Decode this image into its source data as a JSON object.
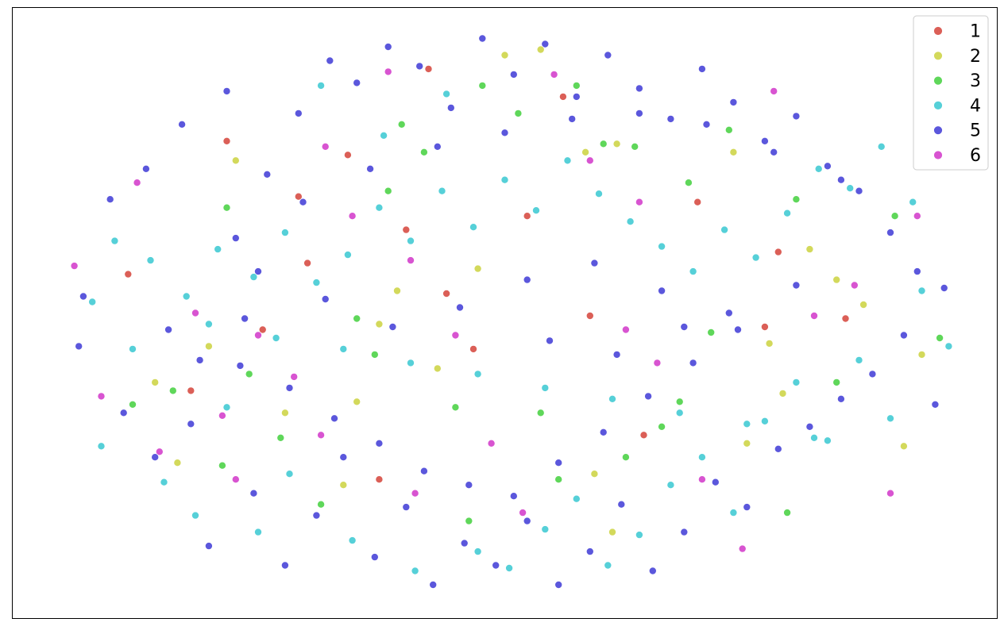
{
  "chart_data": {
    "type": "scatter",
    "title": "",
    "xlabel": "",
    "ylabel": "",
    "axes_ticks": false,
    "grid": false,
    "legend_placement": "top-right",
    "x_range": [
      -100,
      100
    ],
    "y_range": [
      -100,
      100
    ],
    "series": [
      {
        "name": "1",
        "color": "#db5f57",
        "points": [
          [
            -84,
            14
          ],
          [
            -17,
            88
          ],
          [
            13,
            78
          ],
          [
            -44,
            18
          ],
          [
            -13,
            7
          ],
          [
            -54,
            -6
          ],
          [
            -70,
            -28
          ],
          [
            -28,
            -60
          ],
          [
            61,
            22
          ],
          [
            76,
            -2
          ],
          [
            -46,
            42
          ],
          [
            43,
            40
          ],
          [
            -22,
            30
          ],
          [
            31,
            -44
          ],
          [
            -7,
            -13
          ],
          [
            58,
            -5
          ],
          [
            -35,
            57
          ],
          [
            19,
            -1
          ],
          [
            5,
            35
          ],
          [
            -62,
            62
          ]
        ]
      },
      {
        "name": "2",
        "color": "#d3d95b",
        "points": [
          [
            -60,
            55
          ],
          [
            -78,
            -25
          ],
          [
            -73,
            -54
          ],
          [
            -66,
            -12
          ],
          [
            -49,
            -36
          ],
          [
            -33,
            -32
          ],
          [
            -36,
            -62
          ],
          [
            -24,
            8
          ],
          [
            -15,
            -20
          ],
          [
            -6,
            16
          ],
          [
            0,
            93
          ],
          [
            8,
            95
          ],
          [
            20,
            -58
          ],
          [
            24,
            -79
          ],
          [
            25,
            61
          ],
          [
            51,
            58
          ],
          [
            54,
            -47
          ],
          [
            59,
            -11
          ],
          [
            62,
            -29
          ],
          [
            68,
            23
          ],
          [
            80,
            3
          ],
          [
            89,
            -48
          ],
          [
            93,
            -15
          ],
          [
            74,
            12
          ],
          [
            18,
            58
          ],
          [
            -28,
            -4
          ]
        ]
      },
      {
        "name": "3",
        "color": "#5fd75a",
        "points": [
          [
            -74,
            -28
          ],
          [
            -57,
            -22
          ],
          [
            -41,
            -69
          ],
          [
            -33,
            -2
          ],
          [
            -29,
            -15
          ],
          [
            -23,
            68
          ],
          [
            -18,
            58
          ],
          [
            -11,
            -34
          ],
          [
            -5,
            82
          ],
          [
            3,
            72
          ],
          [
            16,
            82
          ],
          [
            22,
            61
          ],
          [
            29,
            60
          ],
          [
            41,
            47
          ],
          [
            46,
            -7
          ],
          [
            50,
            66
          ],
          [
            65,
            41
          ],
          [
            74,
            -25
          ],
          [
            87,
            35
          ],
          [
            97,
            -9
          ],
          [
            -83,
            -33
          ],
          [
            -63,
            -55
          ],
          [
            -50,
            -45
          ],
          [
            -8,
            -75
          ],
          [
            8,
            -36
          ],
          [
            12,
            -60
          ],
          [
            27,
            -52
          ],
          [
            35,
            -41
          ],
          [
            63,
            -72
          ],
          [
            39,
            -32
          ],
          [
            -62,
            38
          ],
          [
            -26,
            44
          ]
        ]
      },
      {
        "name": "4",
        "color": "#56d0d8",
        "points": [
          [
            -90,
            -48
          ],
          [
            -83,
            -13
          ],
          [
            -76,
            -61
          ],
          [
            -69,
            -73
          ],
          [
            -62,
            -34
          ],
          [
            -55,
            -79
          ],
          [
            -48,
            -58
          ],
          [
            -41,
            82
          ],
          [
            -34,
            -82
          ],
          [
            -27,
            64
          ],
          [
            -20,
            -93
          ],
          [
            -13,
            79
          ],
          [
            -6,
            -86
          ],
          [
            1,
            -92
          ],
          [
            9,
            -78
          ],
          [
            16,
            -67
          ],
          [
            23,
            -91
          ],
          [
            30,
            -80
          ],
          [
            37,
            -62
          ],
          [
            44,
            -52
          ],
          [
            51,
            -72
          ],
          [
            58,
            -39
          ],
          [
            65,
            -25
          ],
          [
            72,
            -46
          ],
          [
            79,
            -17
          ],
          [
            86,
            -38
          ],
          [
            93,
            8
          ],
          [
            99,
            -12
          ],
          [
            -92,
            4
          ],
          [
            -87,
            26
          ],
          [
            -79,
            19
          ],
          [
            -71,
            6
          ],
          [
            -64,
            23
          ],
          [
            -56,
            13
          ],
          [
            -49,
            29
          ],
          [
            -42,
            11
          ],
          [
            -35,
            21
          ],
          [
            -28,
            38
          ],
          [
            -21,
            26
          ],
          [
            -14,
            44
          ],
          [
            -7,
            31
          ],
          [
            0,
            48
          ],
          [
            7,
            37
          ],
          [
            14,
            55
          ],
          [
            21,
            43
          ],
          [
            28,
            33
          ],
          [
            35,
            24
          ],
          [
            42,
            15
          ],
          [
            49,
            30
          ],
          [
            56,
            20
          ],
          [
            63,
            36
          ],
          [
            70,
            52
          ],
          [
            77,
            45
          ],
          [
            84,
            60
          ],
          [
            91,
            40
          ],
          [
            -66,
            -4
          ],
          [
            -51,
            -9
          ],
          [
            -36,
            -13
          ],
          [
            -21,
            -18
          ],
          [
            -6,
            -22
          ],
          [
            9,
            -27
          ],
          [
            24,
            -31
          ],
          [
            39,
            -36
          ],
          [
            54,
            -40
          ],
          [
            69,
            -45
          ]
        ]
      },
      {
        "name": "5",
        "color": "#5b57dc",
        "points": [
          [
            -95,
            -12
          ],
          [
            -94,
            6
          ],
          [
            -88,
            41
          ],
          [
            -85,
            -36
          ],
          [
            -80,
            52
          ],
          [
            -75,
            -6
          ],
          [
            -72,
            68
          ],
          [
            -70,
            -40
          ],
          [
            -66,
            -84
          ],
          [
            -62,
            80
          ],
          [
            -59,
            -19
          ],
          [
            -56,
            -65
          ],
          [
            -53,
            50
          ],
          [
            -49,
            -91
          ],
          [
            -46,
            72
          ],
          [
            -42,
            -73
          ],
          [
            -39,
            91
          ],
          [
            -36,
            -52
          ],
          [
            -33,
            83
          ],
          [
            -29,
            -88
          ],
          [
            -26,
            96
          ],
          [
            -22,
            -70
          ],
          [
            -19,
            89
          ],
          [
            -16,
            -98
          ],
          [
            -12,
            74
          ],
          [
            -9,
            -83
          ],
          [
            -5,
            99
          ],
          [
            -2,
            -91
          ],
          [
            2,
            86
          ],
          [
            5,
            -75
          ],
          [
            9,
            97
          ],
          [
            12,
            -98
          ],
          [
            16,
            78
          ],
          [
            19,
            -86
          ],
          [
            23,
            93
          ],
          [
            26,
            -69
          ],
          [
            30,
            81
          ],
          [
            33,
            -93
          ],
          [
            37,
            70
          ],
          [
            40,
            -79
          ],
          [
            44,
            88
          ],
          [
            47,
            -61
          ],
          [
            51,
            76
          ],
          [
            54,
            -70
          ],
          [
            58,
            62
          ],
          [
            61,
            -49
          ],
          [
            65,
            71
          ],
          [
            68,
            -41
          ],
          [
            72,
            53
          ],
          [
            75,
            -31
          ],
          [
            79,
            44
          ],
          [
            82,
            -22
          ],
          [
            86,
            29
          ],
          [
            89,
            -8
          ],
          [
            92,
            15
          ],
          [
            96,
            -33
          ],
          [
            98,
            9
          ],
          [
            -78,
            -52
          ],
          [
            -68,
            -17
          ],
          [
            -58,
            -2
          ],
          [
            -48,
            -27
          ],
          [
            -38,
            -38
          ],
          [
            -28,
            -47
          ],
          [
            -18,
            -57
          ],
          [
            -8,
            -62
          ],
          [
            2,
            -66
          ],
          [
            12,
            -54
          ],
          [
            22,
            -43
          ],
          [
            32,
            -30
          ],
          [
            42,
            -18
          ],
          [
            52,
            -6
          ],
          [
            -60,
            27
          ],
          [
            -45,
            40
          ],
          [
            -30,
            52
          ],
          [
            -15,
            60
          ],
          [
            0,
            65
          ],
          [
            15,
            70
          ],
          [
            30,
            72
          ],
          [
            45,
            68
          ],
          [
            60,
            58
          ],
          [
            75,
            48
          ],
          [
            -40,
            5
          ],
          [
            -25,
            -5
          ],
          [
            -10,
            2
          ],
          [
            5,
            12
          ],
          [
            20,
            18
          ],
          [
            35,
            8
          ],
          [
            50,
            0
          ],
          [
            65,
            10
          ],
          [
            -55,
            15
          ],
          [
            10,
            -10
          ],
          [
            25,
            -15
          ],
          [
            40,
            -5
          ]
        ]
      },
      {
        "name": "6",
        "color": "#d854d1",
        "points": [
          [
            -96,
            17
          ],
          [
            -90,
            -30
          ],
          [
            -82,
            47
          ],
          [
            -77,
            -50
          ],
          [
            -69,
            0
          ],
          [
            -63,
            -37
          ],
          [
            -55,
            -8
          ],
          [
            -47,
            -23
          ],
          [
            -41,
            -44
          ],
          [
            -34,
            35
          ],
          [
            -26,
            87
          ],
          [
            -21,
            19
          ],
          [
            -11,
            -8
          ],
          [
            -3,
            -47
          ],
          [
            4,
            -72
          ],
          [
            11,
            86
          ],
          [
            19,
            55
          ],
          [
            27,
            -6
          ],
          [
            34,
            -18
          ],
          [
            44,
            -60
          ],
          [
            53,
            -85
          ],
          [
            60,
            80
          ],
          [
            69,
            -1
          ],
          [
            78,
            10
          ],
          [
            86,
            -65
          ],
          [
            92,
            35
          ],
          [
            -60,
            -60
          ],
          [
            -40,
            60
          ],
          [
            -20,
            -65
          ],
          [
            30,
            40
          ]
        ]
      }
    ]
  }
}
